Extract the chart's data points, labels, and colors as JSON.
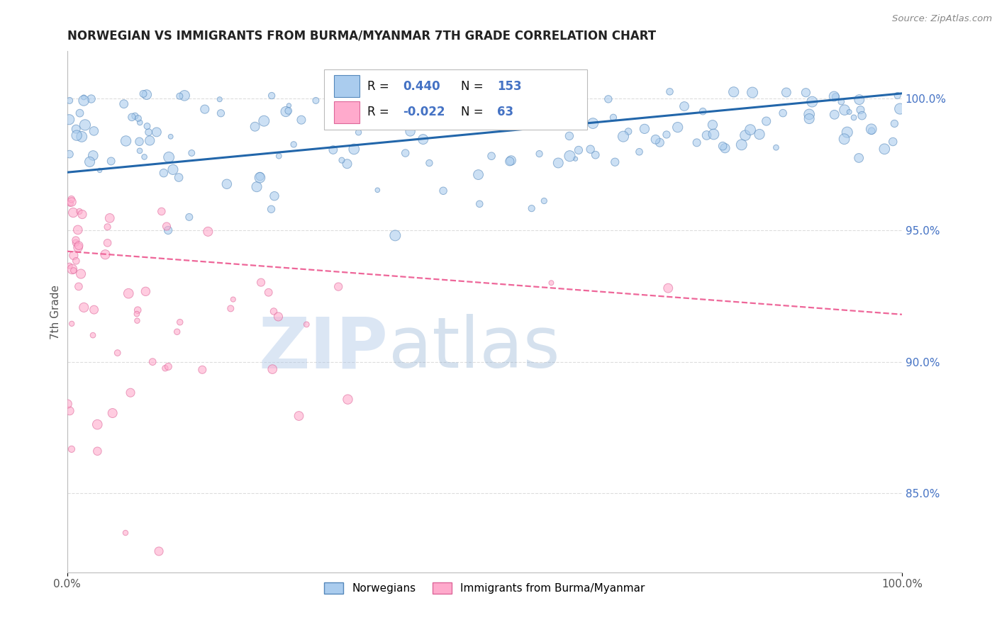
{
  "title": "NORWEGIAN VS IMMIGRANTS FROM BURMA/MYANMAR 7TH GRADE CORRELATION CHART",
  "source": "Source: ZipAtlas.com",
  "ylabel": "7th Grade",
  "ylabel_ticks": [
    85.0,
    90.0,
    95.0,
    100.0
  ],
  "ylabel_tick_labels": [
    "85.0%",
    "90.0%",
    "95.0%",
    "100.0%"
  ],
  "xlim": [
    0.0,
    100.0
  ],
  "ylim": [
    82.0,
    101.8
  ],
  "blue_R": 0.44,
  "blue_N": 153,
  "pink_R": -0.022,
  "pink_N": 63,
  "legend_label_blue": "Norwegians",
  "legend_label_pink": "Immigrants from Burma/Myanmar",
  "blue_color": "#aaccee",
  "pink_color": "#ffaacc",
  "blue_edge_color": "#5588bb",
  "pink_edge_color": "#dd6699",
  "blue_line_color": "#2266aa",
  "pink_line_color": "#ee6699",
  "watermark_zip": "ZIP",
  "watermark_atlas": "atlas",
  "background_color": "#ffffff",
  "grid_color": "#dddddd",
  "title_color": "#222222",
  "axis_label_color": "#555555",
  "right_tick_color": "#4472c4",
  "legend_r_color": "#4472c4",
  "blue_line_start_y": 97.2,
  "blue_line_end_y": 100.2,
  "pink_line_start_y": 94.2,
  "pink_line_end_y": 91.8
}
